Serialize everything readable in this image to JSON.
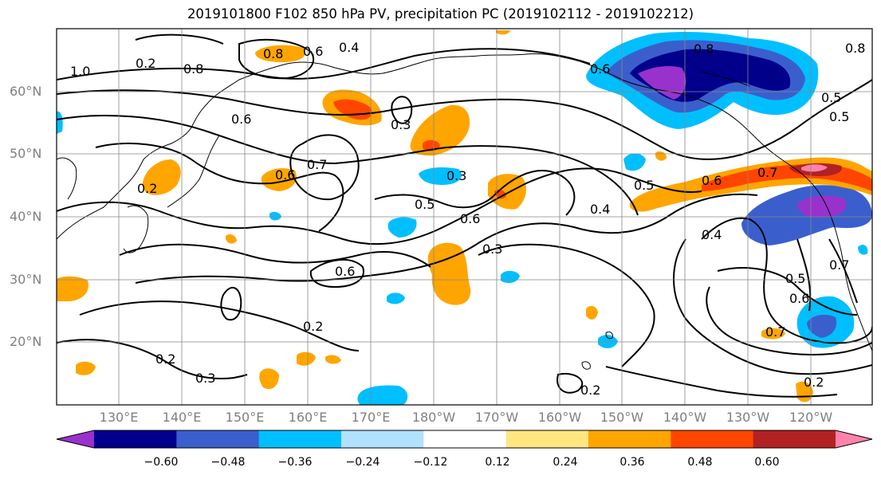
{
  "title": "2019101800 F102 850 hPa PV, precipitation PC (2019102112 - 2019102212)",
  "lat_labels": [
    "60°N",
    "50°N",
    "40°N",
    "30°N",
    "20°N"
  ],
  "lon_labels": [
    "130°E",
    "140°E",
    "150°E",
    "160°E",
    "170°E",
    "180°W",
    "170°W",
    "160°W",
    "150°W",
    "140°W",
    "130°W",
    "120°W"
  ],
  "colorbar": {
    "tick_labels": [
      "−0.60",
      "−0.48",
      "−0.36",
      "−0.24",
      "−0.12",
      "0.12",
      "0.24",
      "0.36",
      "0.48",
      "0.60"
    ],
    "colors": [
      "#9932cc",
      "#00008b",
      "#3a5fcd",
      "#00bfff",
      "#b0e2ff",
      "#ffffff",
      "#ffe680",
      "#ffa500",
      "#ff4500",
      "#b22222",
      "#ff82ab"
    ]
  },
  "contour_labels": [
    "0.8",
    "0.6",
    "0.4",
    "1.0",
    "0.2",
    "0.8",
    "0.6",
    "0.3",
    "0.8",
    "0.6",
    "0.5",
    "0.7",
    "0.6",
    "0.7",
    "0.2",
    "0.3",
    "0.5",
    "0.6",
    "0.4",
    "0.5",
    "0.6",
    "0.7",
    "0.3",
    "0.4",
    "0.6",
    "0.5",
    "0.2",
    "0.7",
    "0.2",
    "0.3",
    "0.2",
    "0.2",
    "0.5",
    "0.6",
    "0.8"
  ]
}
